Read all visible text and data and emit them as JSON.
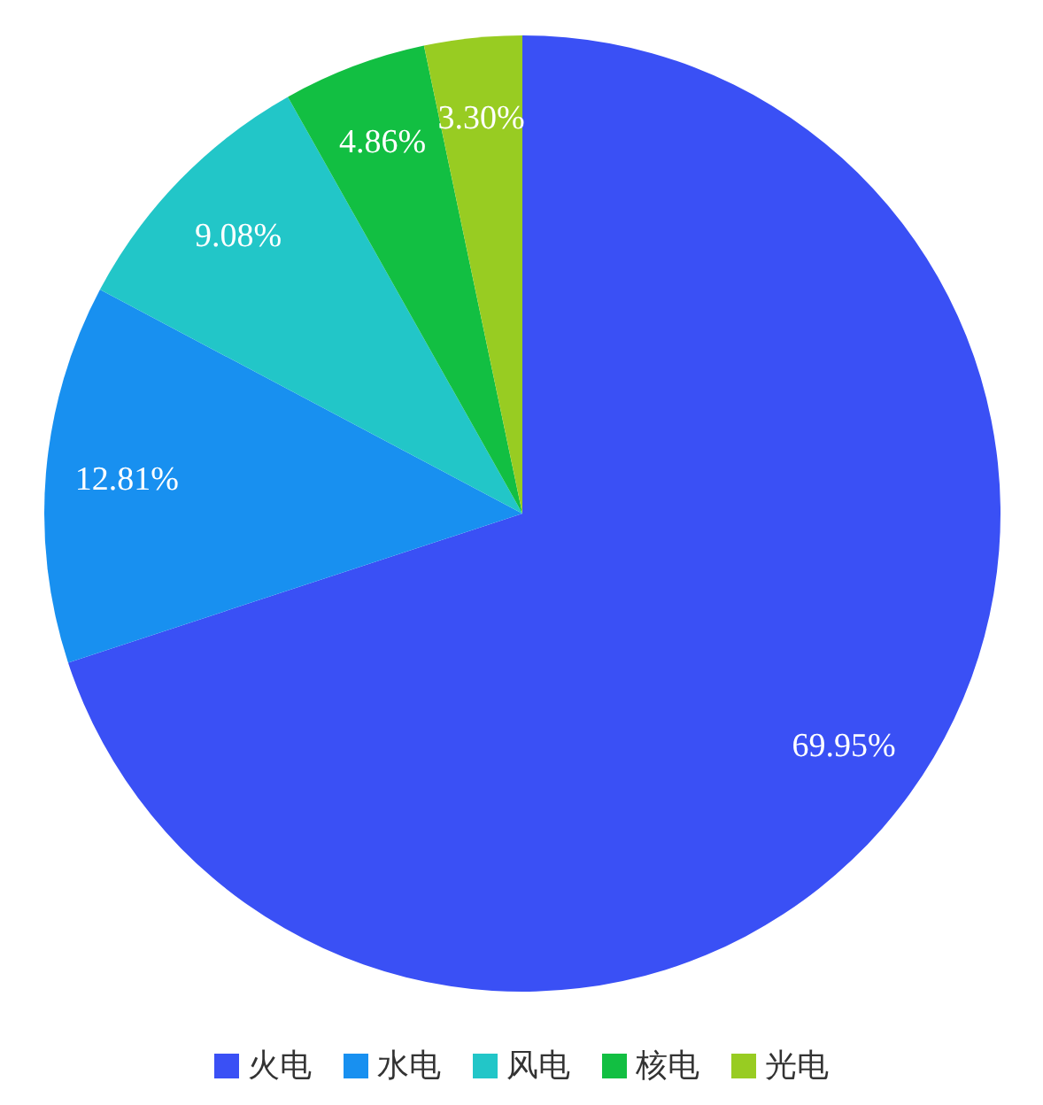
{
  "chart_data": {
    "type": "pie",
    "categories": [
      "火电",
      "水电",
      "风电",
      "核电",
      "光电"
    ],
    "values": [
      69.95,
      12.81,
      9.08,
      4.86,
      3.3
    ],
    "value_labels": [
      "69.95%",
      "12.81%",
      "9.08%",
      "4.86%",
      "3.30%"
    ],
    "colors": [
      "#3a50f5",
      "#1890f0",
      "#22c6c8",
      "#12bf42",
      "#98cc22"
    ],
    "legend": "bottom"
  }
}
